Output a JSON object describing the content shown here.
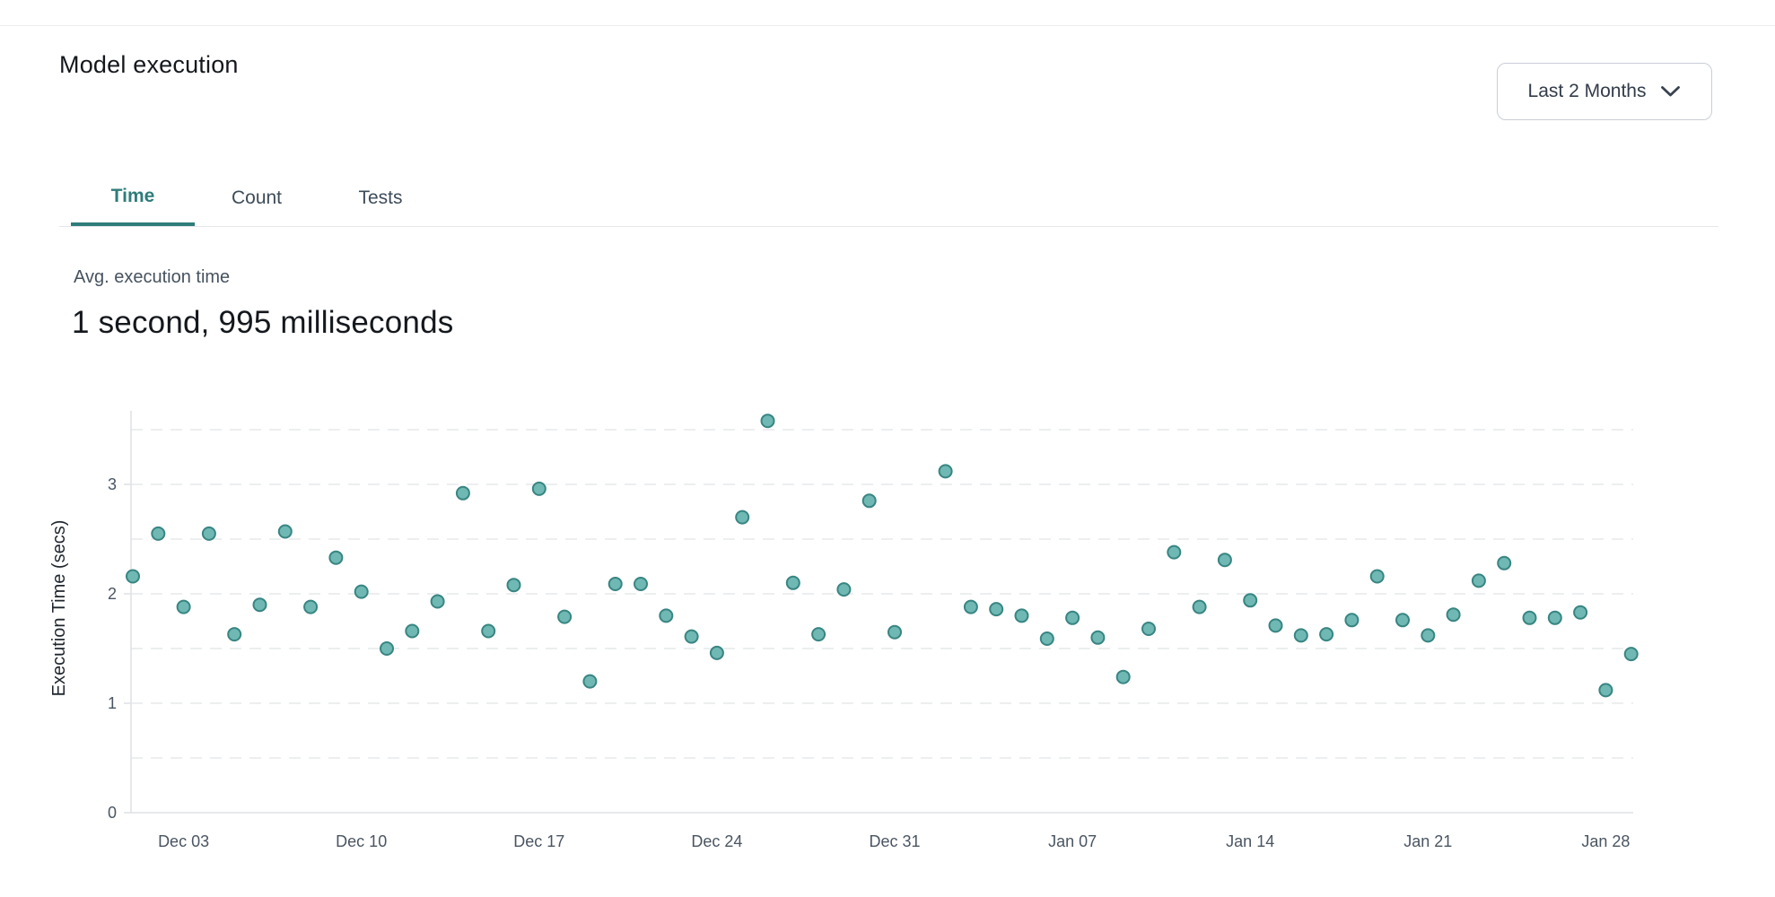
{
  "page": {
    "title": "Model execution"
  },
  "dropdown": {
    "label": "Last 2 Months"
  },
  "tabs": [
    {
      "label": "Time",
      "active": true
    },
    {
      "label": "Count",
      "active": false
    },
    {
      "label": "Tests",
      "active": false
    }
  ],
  "stats": {
    "label": "Avg. execution time",
    "value": "1 second, 995 milliseconds"
  },
  "colors": {
    "accent_teal": "#2e7d7a",
    "point_fill": "#6fb8b4",
    "point_stroke": "#388582",
    "grid_line": "#e6e8ea",
    "axis_line": "#dfe2e6",
    "tick_text": "#4a5562",
    "axis_title_text": "#1f262e"
  },
  "chart_data": {
    "type": "scatter",
    "ylabel": "Execution Time (secs)",
    "xlabel": "",
    "ylim": [
      0,
      3.7
    ],
    "yticks": [
      0,
      1,
      2,
      3
    ],
    "grid_step": 0.5,
    "grid_on": true,
    "x_ticks": [
      {
        "label": "Dec 03",
        "day": 2
      },
      {
        "label": "Dec 10",
        "day": 9
      },
      {
        "label": "Dec 17",
        "day": 16
      },
      {
        "label": "Dec 24",
        "day": 23
      },
      {
        "label": "Dec 31",
        "day": 30
      },
      {
        "label": "Jan 07",
        "day": 37
      },
      {
        "label": "Jan 14",
        "day": 44
      },
      {
        "label": "Jan 21",
        "day": 51
      },
      {
        "label": "Jan 28",
        "day": 58
      }
    ],
    "points": [
      {
        "date": "Dec 01",
        "day": 0,
        "value": 2.16
      },
      {
        "date": "Dec 02",
        "day": 1,
        "value": 2.55
      },
      {
        "date": "Dec 03",
        "day": 2,
        "value": 1.88
      },
      {
        "date": "Dec 04",
        "day": 3,
        "value": 2.55
      },
      {
        "date": "Dec 05",
        "day": 4,
        "value": 1.63
      },
      {
        "date": "Dec 06",
        "day": 5,
        "value": 1.9
      },
      {
        "date": "Dec 07",
        "day": 6,
        "value": 2.57
      },
      {
        "date": "Dec 08",
        "day": 7,
        "value": 1.88
      },
      {
        "date": "Dec 09",
        "day": 8,
        "value": 2.33
      },
      {
        "date": "Dec 10",
        "day": 9,
        "value": 2.02
      },
      {
        "date": "Dec 11",
        "day": 10,
        "value": 1.5
      },
      {
        "date": "Dec 12",
        "day": 11,
        "value": 1.66
      },
      {
        "date": "Dec 13",
        "day": 12,
        "value": 1.93
      },
      {
        "date": "Dec 14",
        "day": 13,
        "value": 2.92
      },
      {
        "date": "Dec 15",
        "day": 14,
        "value": 1.66
      },
      {
        "date": "Dec 16",
        "day": 15,
        "value": 2.08
      },
      {
        "date": "Dec 17",
        "day": 16,
        "value": 2.96
      },
      {
        "date": "Dec 18",
        "day": 17,
        "value": 1.79
      },
      {
        "date": "Dec 19",
        "day": 18,
        "value": 1.2
      },
      {
        "date": "Dec 20",
        "day": 19,
        "value": 2.09
      },
      {
        "date": "Dec 21",
        "day": 20,
        "value": 2.09
      },
      {
        "date": "Dec 22",
        "day": 21,
        "value": 1.8
      },
      {
        "date": "Dec 23",
        "day": 22,
        "value": 1.61
      },
      {
        "date": "Dec 24",
        "day": 23,
        "value": 1.46
      },
      {
        "date": "Dec 25",
        "day": 24,
        "value": 2.7
      },
      {
        "date": "Dec 26",
        "day": 25,
        "value": 3.58
      },
      {
        "date": "Dec 27",
        "day": 26,
        "value": 2.1
      },
      {
        "date": "Dec 28",
        "day": 27,
        "value": 1.63
      },
      {
        "date": "Dec 29",
        "day": 28,
        "value": 2.04
      },
      {
        "date": "Dec 30",
        "day": 29,
        "value": 2.85
      },
      {
        "date": "Dec 31",
        "day": 30,
        "value": 1.65
      },
      {
        "date": "Jan 02",
        "day": 32,
        "value": 3.12
      },
      {
        "date": "Jan 03",
        "day": 33,
        "value": 1.88
      },
      {
        "date": "Jan 04",
        "day": 34,
        "value": 1.86
      },
      {
        "date": "Jan 05",
        "day": 35,
        "value": 1.8
      },
      {
        "date": "Jan 06",
        "day": 36,
        "value": 1.59
      },
      {
        "date": "Jan 07",
        "day": 37,
        "value": 1.78
      },
      {
        "date": "Jan 08",
        "day": 38,
        "value": 1.6
      },
      {
        "date": "Jan 09",
        "day": 39,
        "value": 1.24
      },
      {
        "date": "Jan 10",
        "day": 40,
        "value": 1.68
      },
      {
        "date": "Jan 11",
        "day": 41,
        "value": 2.38
      },
      {
        "date": "Jan 12",
        "day": 42,
        "value": 1.88
      },
      {
        "date": "Jan 13",
        "day": 43,
        "value": 2.31
      },
      {
        "date": "Jan 14",
        "day": 44,
        "value": 1.94
      },
      {
        "date": "Jan 15",
        "day": 45,
        "value": 1.71
      },
      {
        "date": "Jan 16",
        "day": 46,
        "value": 1.62
      },
      {
        "date": "Jan 17",
        "day": 47,
        "value": 1.63
      },
      {
        "date": "Jan 18",
        "day": 48,
        "value": 1.76
      },
      {
        "date": "Jan 19",
        "day": 49,
        "value": 2.16
      },
      {
        "date": "Jan 20",
        "day": 50,
        "value": 1.76
      },
      {
        "date": "Jan 21",
        "day": 51,
        "value": 1.62
      },
      {
        "date": "Jan 22",
        "day": 52,
        "value": 1.81
      },
      {
        "date": "Jan 23",
        "day": 53,
        "value": 2.12
      },
      {
        "date": "Jan 24",
        "day": 54,
        "value": 2.28
      },
      {
        "date": "Jan 25",
        "day": 55,
        "value": 1.78
      },
      {
        "date": "Jan 26",
        "day": 56,
        "value": 1.78
      },
      {
        "date": "Jan 27",
        "day": 57,
        "value": 1.83
      },
      {
        "date": "Jan 28",
        "day": 58,
        "value": 1.12
      },
      {
        "date": "Jan 29",
        "day": 59,
        "value": 1.45
      }
    ]
  }
}
